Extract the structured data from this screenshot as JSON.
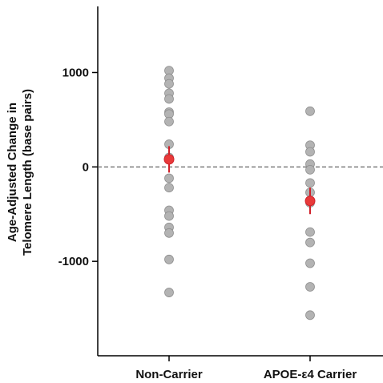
{
  "chart_data": {
    "type": "scatter",
    "ylabel_lines": [
      "Age-Adjusted Change in",
      "Telomere Length (base pairs)"
    ],
    "categories": [
      "Non-Carrier",
      "APOE-ε4 Carrier"
    ],
    "ylim": [
      -2000,
      1700
    ],
    "yticks": [
      1000,
      0,
      -1000
    ],
    "ytick_labels": [
      "1000",
      "0",
      "-1000"
    ],
    "reference_line": 0,
    "series": [
      {
        "values": [
          1020,
          940,
          880,
          780,
          720,
          580,
          560,
          480,
          240,
          100,
          80,
          -120,
          -220,
          -460,
          -520,
          -640,
          -700,
          -980,
          -1330
        ]
      },
      {
        "values": [
          590,
          230,
          160,
          30,
          -30,
          -170,
          -270,
          -380,
          -690,
          -800,
          -1020,
          -1270,
          -1570
        ]
      }
    ],
    "means": [
      80,
      -360
    ],
    "errors": [
      [
        -60,
        220
      ],
      [
        -500,
        -220
      ]
    ],
    "colors": {
      "points": "#b3b3b3",
      "point_edge": "#8f8f8f",
      "mean": "#e83a3a",
      "error": "#d0212a",
      "axis": "#000000",
      "reference": "#555555"
    }
  }
}
